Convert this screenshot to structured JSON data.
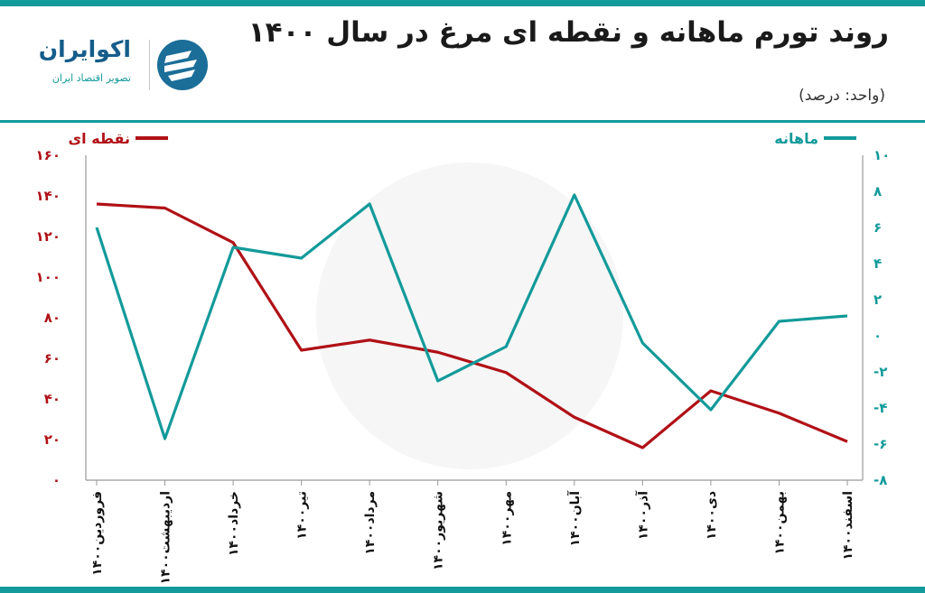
{
  "header": {
    "title": "روند تورم ماهانه و نقطه ای مرغ در سال ۱۴۰۰",
    "unit": "(واحد: درصد)"
  },
  "brand": {
    "name": "اکوایران",
    "tagline": "تصویر اقتصاد ایران"
  },
  "colors": {
    "accent": "#139a9a",
    "point_to_point": "#b01116",
    "monthly": "#139a9a"
  },
  "chart_data": {
    "type": "line",
    "title": "روند تورم ماهانه و نقطه ای مرغ در سال ۱۴۰۰",
    "unit_label": "(واحد: درصد)",
    "categories": [
      "فروردین۱۴۰۰",
      "اردیبهشت۱۴۰۰",
      "خرداد۱۴۰۰",
      "تیر۱۴۰۰",
      "مرداد۱۴۰۰",
      "شهریور۱۴۰۰",
      "مهر۱۴۰۰",
      "آبان۱۴۰۰",
      "آذر۱۴۰۰",
      "دی۱۴۰۰",
      "بهمن۱۴۰۰",
      "اسفند۱۴۰۰"
    ],
    "left_axis": {
      "ylim": [
        0,
        160
      ],
      "ticks": [
        0,
        20,
        40,
        60,
        80,
        100,
        120,
        140,
        160
      ],
      "tick_labels": [
        "۰",
        "۲۰",
        "۴۰",
        "۶۰",
        "۸۰",
        "۱۰۰",
        "۱۲۰",
        "۱۴۰",
        "۱۶۰"
      ]
    },
    "right_axis": {
      "ylim": [
        -8,
        10
      ],
      "ticks": [
        -8,
        -6,
        -4,
        -2,
        0,
        2,
        4,
        6,
        8,
        10
      ],
      "tick_labels": [
        "-۸",
        "-۶",
        "-۴",
        "-۲",
        "۰",
        "۲",
        "۴",
        "۶",
        "۸",
        "۱۰"
      ]
    },
    "legend_position": "top",
    "grid": false,
    "series": [
      {
        "name": "نقطه ای",
        "axis": "left",
        "color": "#b01116",
        "values": [
          136,
          134,
          117,
          64,
          69,
          63,
          53,
          31,
          16,
          44,
          33,
          19
        ]
      },
      {
        "name": "ماهانه",
        "axis": "right",
        "color": "#139a9a",
        "values": [
          6.0,
          -5.7,
          4.9,
          4.3,
          7.3,
          -2.5,
          -0.6,
          7.8,
          -0.4,
          -4.1,
          0.8,
          1.1
        ]
      }
    ]
  }
}
